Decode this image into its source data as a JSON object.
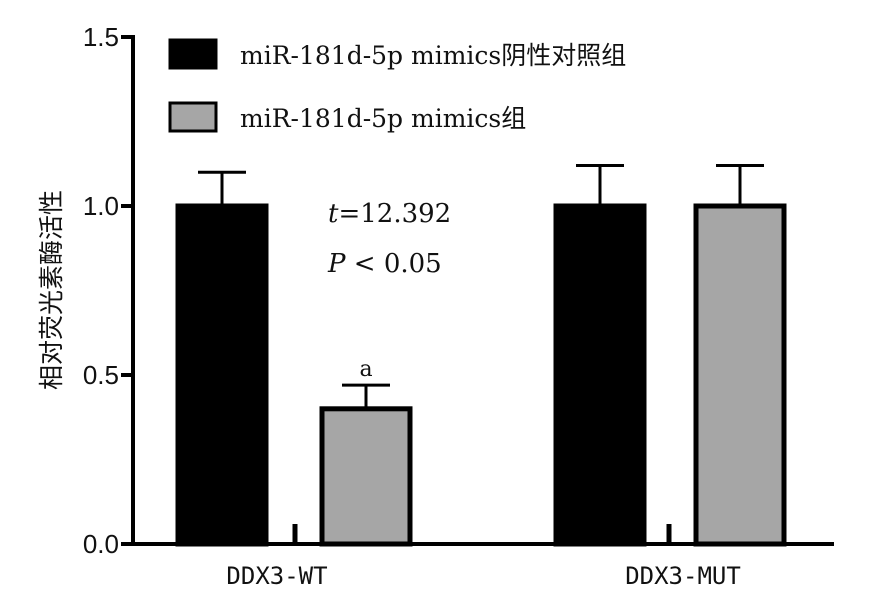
{
  "chart_data": {
    "type": "bar",
    "categories": [
      "DDX3-WT",
      "DDX3-MUT"
    ],
    "series": [
      {
        "name": "miR-181d-5p mimics阴性对照组",
        "values": [
          1.0,
          1.0
        ],
        "errors": [
          0.1,
          0.12
        ],
        "color": "#000000"
      },
      {
        "name": "miR-181d-5p mimics组",
        "values": [
          0.4,
          1.0
        ],
        "errors": [
          0.07,
          0.12
        ],
        "color": "#a6a6a6"
      }
    ],
    "ylabel": "相对荧光素酶活性",
    "xlabel": "",
    "ylim": [
      0,
      1.5
    ],
    "yticks": [
      "0.0",
      "0.5",
      "1.0",
      "1.5"
    ],
    "legend_position": "top-left",
    "annotations": {
      "t_symbol": "t",
      "t_rest": "=12.392",
      "p_symbol": "P",
      "p_rest": " < 0.05",
      "significance_mark": "a"
    },
    "grid": false
  }
}
